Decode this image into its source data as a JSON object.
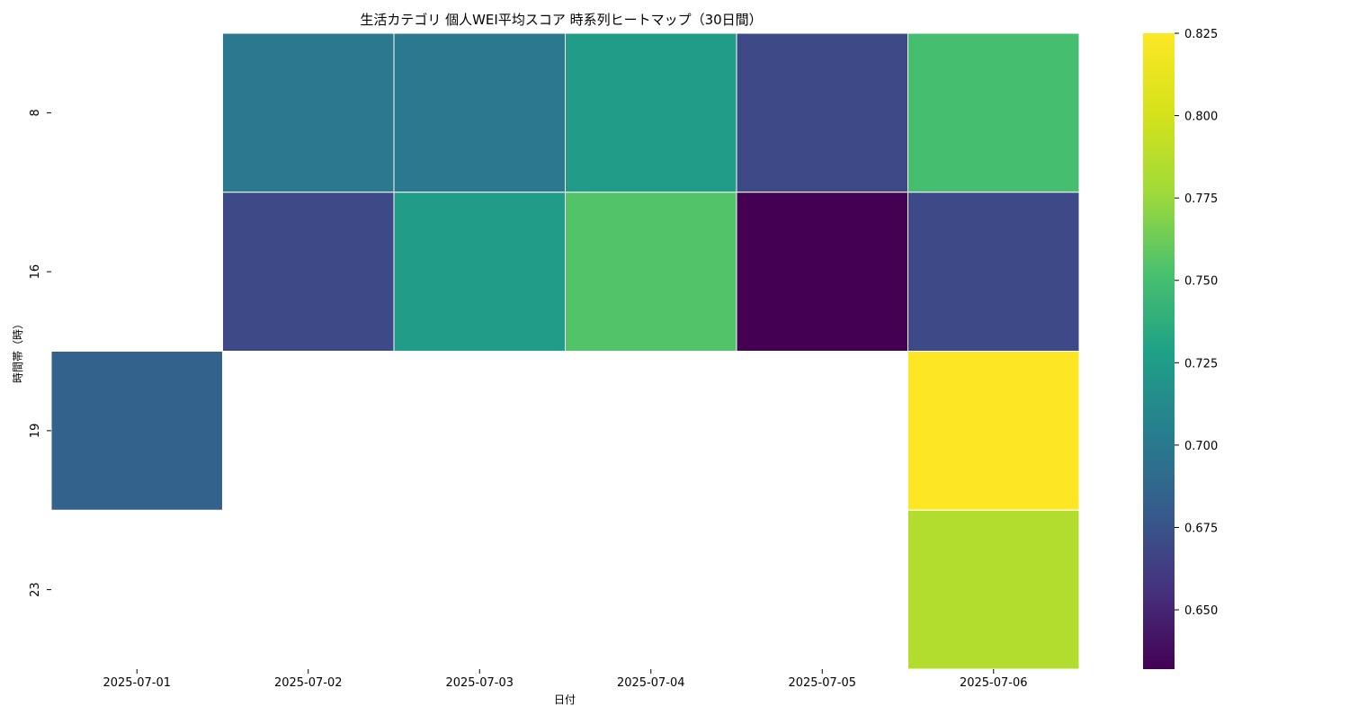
{
  "chart_data": {
    "type": "heatmap",
    "title": "生活カテゴリ 個人WEI平均スコア 時系列ヒートマップ（30日間）",
    "xlabel": "日付",
    "ylabel": "時間帯（時）",
    "x": [
      "2025-07-01",
      "2025-07-02",
      "2025-07-03",
      "2025-07-04",
      "2025-07-05",
      "2025-07-06"
    ],
    "y": [
      "8",
      "16",
      "19",
      "23"
    ],
    "values": [
      [
        null,
        0.7,
        0.7,
        0.725,
        0.67,
        0.75
      ],
      [
        null,
        0.67,
        0.725,
        0.755,
        0.632,
        0.67
      ],
      [
        0.685,
        null,
        null,
        null,
        null,
        0.825
      ],
      [
        null,
        null,
        null,
        null,
        null,
        0.785
      ]
    ],
    "colormap": "viridis",
    "vmin": 0.632,
    "vmax": 0.825,
    "colorbar_ticks": [
      "0.650",
      "0.675",
      "0.700",
      "0.725",
      "0.750",
      "0.775",
      "0.800",
      "0.825"
    ],
    "cell_border_color": "#ffffff",
    "grid": false
  }
}
